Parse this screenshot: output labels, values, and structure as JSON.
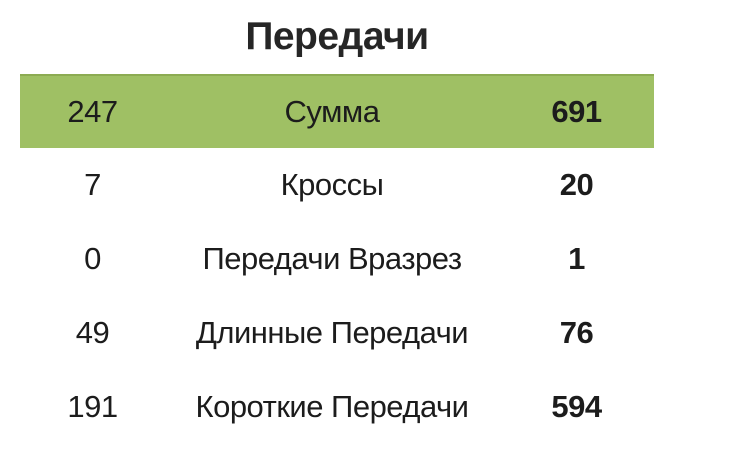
{
  "title": "Передачи",
  "table": {
    "rows": [
      {
        "left": "247",
        "label": "Сумма",
        "right": "691",
        "highlighted": true
      },
      {
        "left": "7",
        "label": "Кроссы",
        "right": "20",
        "highlighted": false
      },
      {
        "left": "0",
        "label": "Передачи Вразрез",
        "right": "1",
        "highlighted": false
      },
      {
        "left": "49",
        "label": "Длинные Передачи",
        "right": "76",
        "highlighted": false
      },
      {
        "left": "191",
        "label": "Короткие Передачи",
        "right": "594",
        "highlighted": false
      }
    ]
  },
  "colors": {
    "highlight_row_bg": "#9FC064",
    "highlight_row_border": "#8CAB52",
    "text": "#1C1C1C"
  },
  "chart_data": {
    "type": "table",
    "title": "Передачи",
    "categories": [
      "Сумма",
      "Кроссы",
      "Передачи Вразрез",
      "Длинные Передачи",
      "Короткие Передачи"
    ],
    "series": [
      {
        "name": "left-team",
        "values": [
          247,
          7,
          0,
          49,
          191
        ]
      },
      {
        "name": "right-team",
        "values": [
          691,
          20,
          1,
          76,
          594
        ]
      }
    ],
    "layout": {
      "highlighted_row": "Сумма",
      "grid": false,
      "legend": "none"
    }
  }
}
